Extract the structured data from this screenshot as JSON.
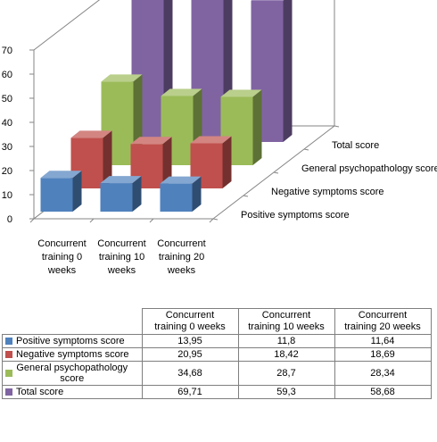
{
  "chart_data": {
    "type": "bar",
    "projection": "3d-clustered-column",
    "categories": [
      "Concurrent training 0 weeks",
      "Concurrent training 10 weeks",
      "Concurrent training 20 weeks"
    ],
    "category_axis_labels": [
      [
        "Concurrent",
        "training 0",
        "weeks"
      ],
      [
        "Concurrent",
        "training 10",
        "weeks"
      ],
      [
        "Concurrent",
        "training 20",
        "weeks"
      ]
    ],
    "series": [
      {
        "name": "Positive symptoms score",
        "color": "#4f81bd",
        "values": [
          13.95,
          11.8,
          11.64
        ],
        "value_labels": [
          "13,95",
          "11,8",
          "11,64"
        ]
      },
      {
        "name": "Negative symptoms score",
        "color": "#c0504d",
        "values": [
          20.95,
          18.42,
          18.69
        ],
        "value_labels": [
          "20,95",
          "18,42",
          "18,69"
        ]
      },
      {
        "name": "General psychopathology score",
        "color": "#9bbb59",
        "values": [
          34.68,
          28.7,
          28.34
        ],
        "value_labels": [
          "34,68",
          "28,7",
          "28,34"
        ]
      },
      {
        "name": "Total score",
        "color": "#8064a2",
        "values": [
          69.71,
          59.3,
          58.68
        ],
        "value_labels": [
          "69,71",
          "59,3",
          "58,68"
        ]
      }
    ],
    "ylim": [
      0,
      70
    ],
    "y_ticks": [
      0,
      10,
      20,
      30,
      40,
      50,
      60,
      70
    ],
    "grid": false
  },
  "table": {
    "column_headers": [
      [
        "Concurrent",
        "training 0 weeks"
      ],
      [
        "Concurrent",
        "training 10 weeks"
      ],
      [
        "Concurrent",
        "training 20 weeks"
      ]
    ],
    "row_labels": [
      [
        "Positive symptoms score"
      ],
      [
        "Negative symptoms score"
      ],
      [
        "General psychopathology",
        "score"
      ],
      [
        "Total score"
      ]
    ]
  }
}
